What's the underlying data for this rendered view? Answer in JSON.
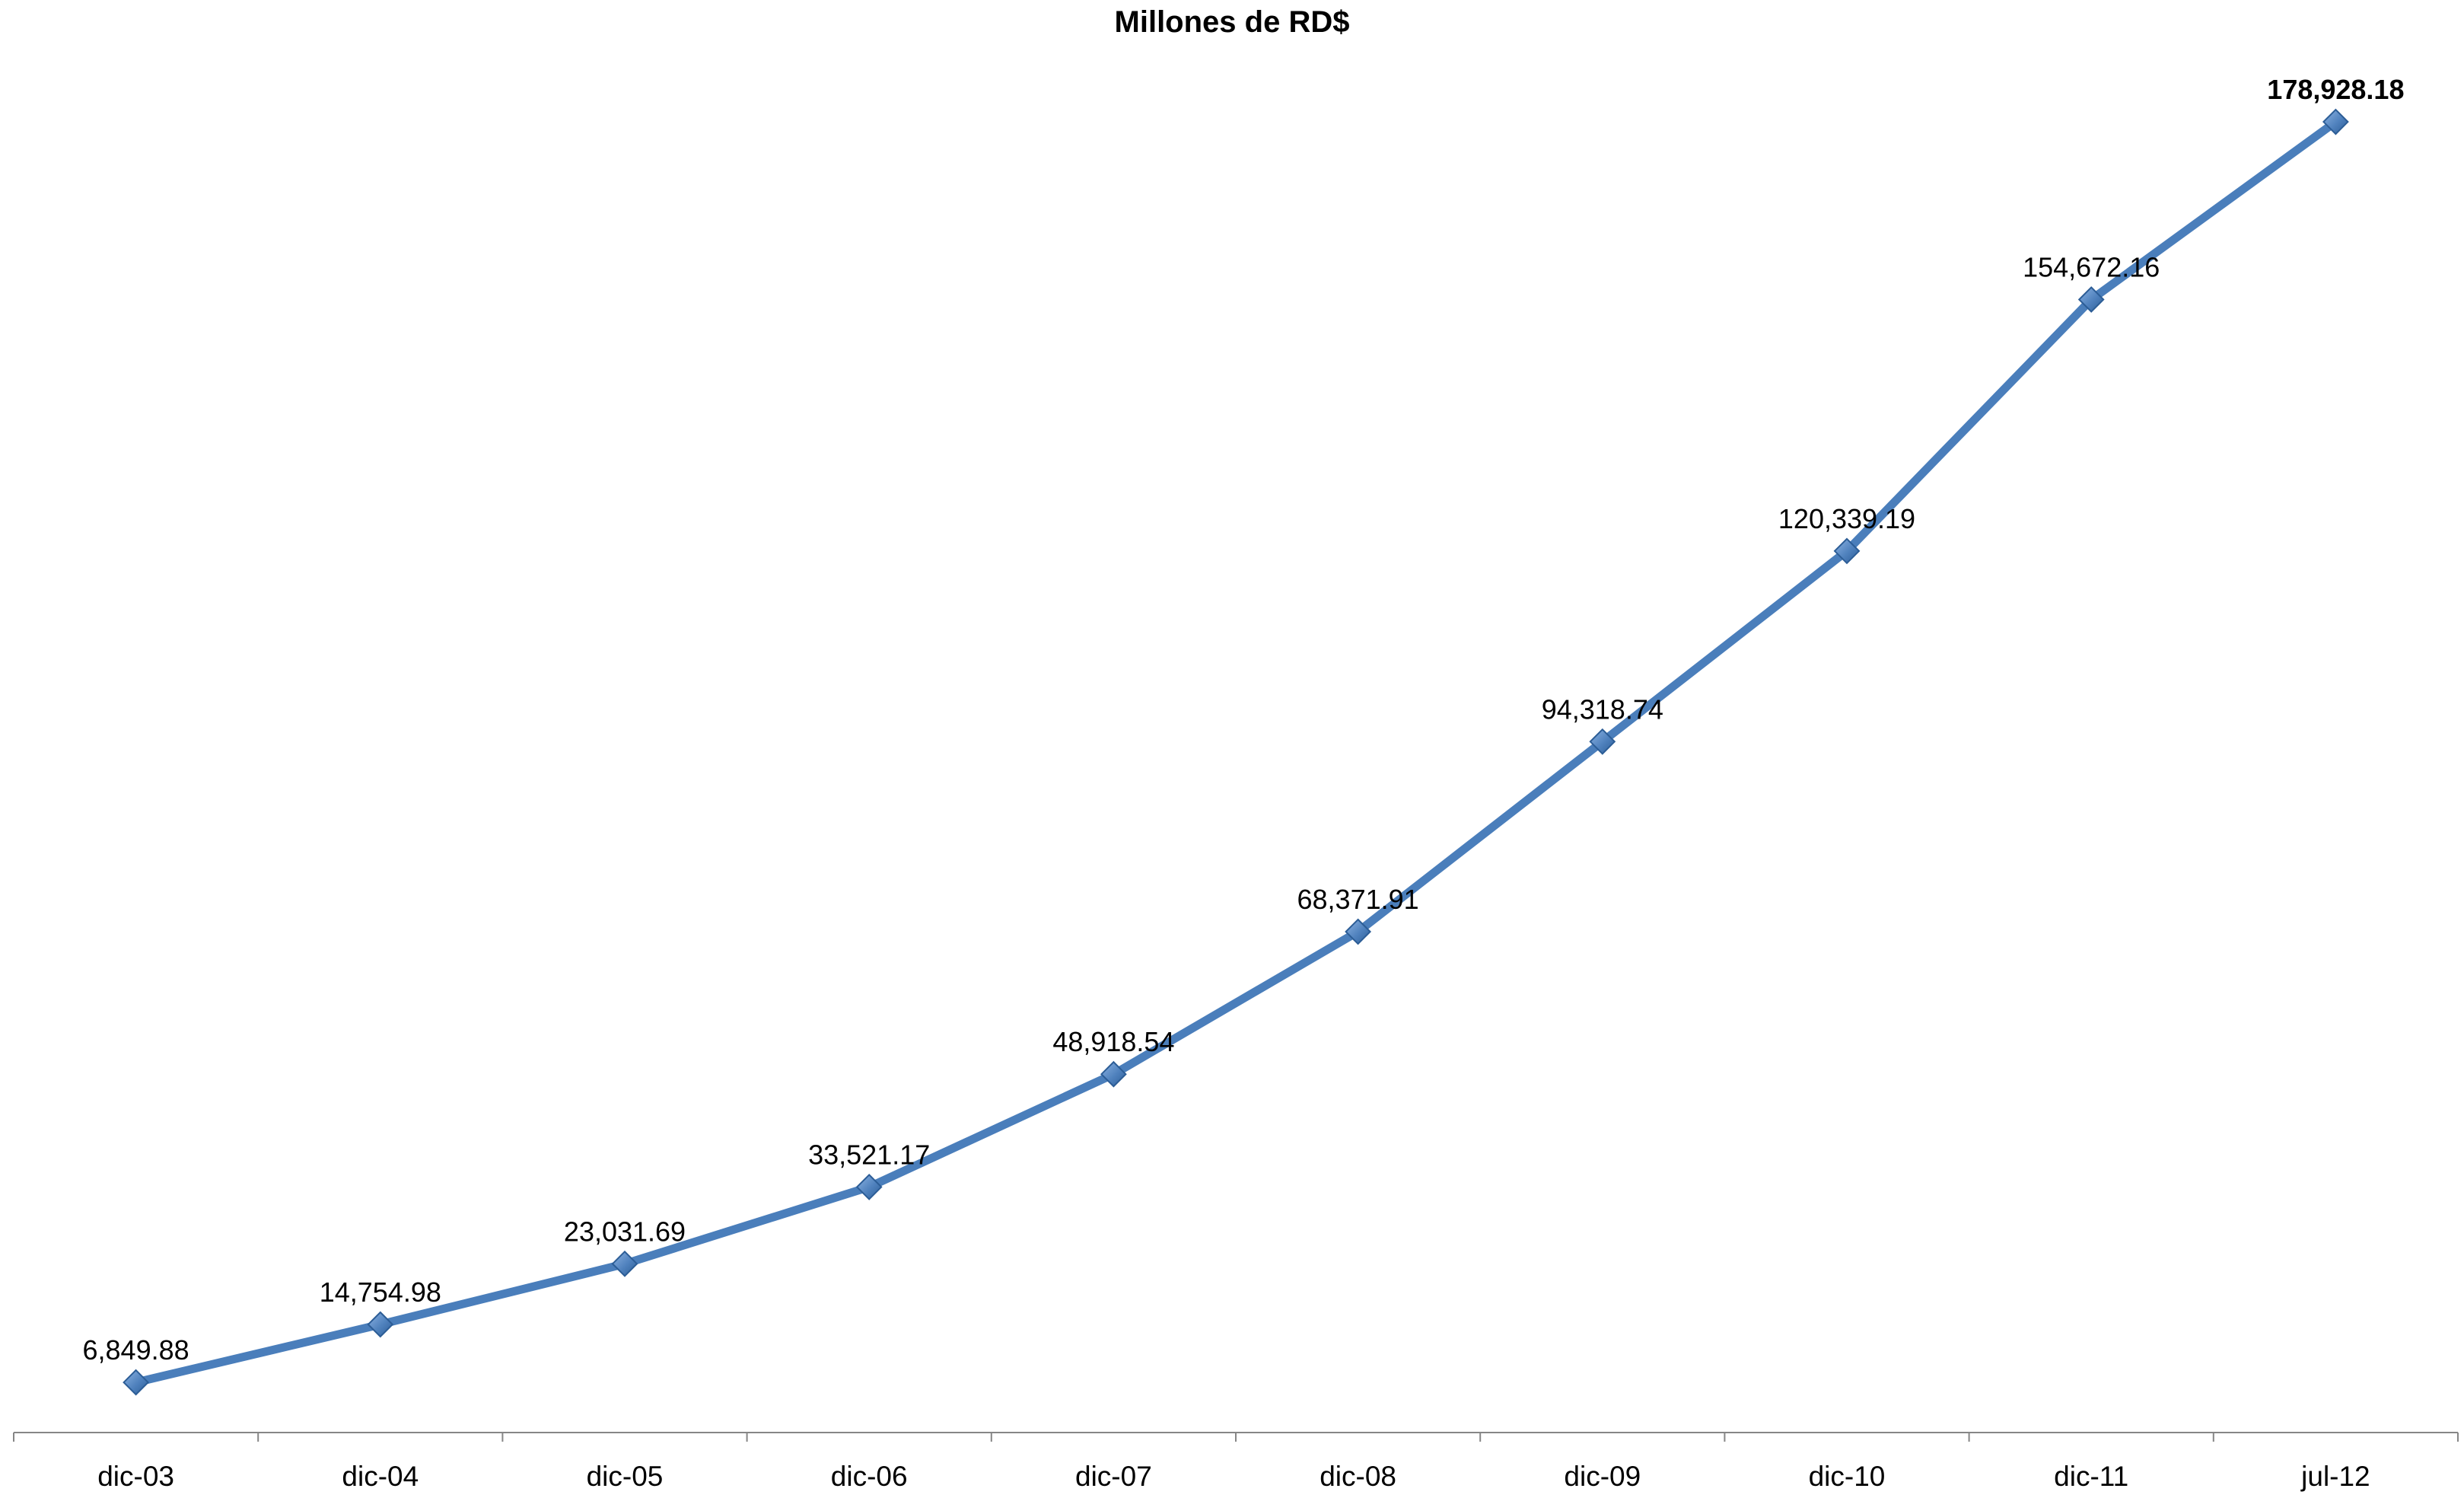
{
  "chart_data": {
    "type": "line",
    "title": "Millones de RD$",
    "xlabel": "",
    "ylabel": "",
    "categories": [
      "dic-03",
      "dic-04",
      "dic-05",
      "dic-06",
      "dic-07",
      "dic-08",
      "dic-09",
      "dic-10",
      "dic-11",
      "jul-12"
    ],
    "series": [
      {
        "values": [
          6849.88,
          14754.98,
          23031.69,
          33521.17,
          48918.54,
          68371.91,
          94318.74,
          120339.19,
          154672.16,
          178928.18
        ],
        "labels": [
          "6,849.88",
          "14,754.98",
          "23,031.69",
          "33,521.17",
          "48,918.54",
          "68,371.91",
          "94,318.74",
          "120,339.19",
          "154,672.16",
          "178,928.18"
        ],
        "color": "#4a7ebb",
        "marker": "diamond"
      }
    ],
    "highlighted_label_index": 9,
    "ylim": [
      0,
      186000
    ],
    "grid": false,
    "legend": "none",
    "y_axis_visible": false
  }
}
